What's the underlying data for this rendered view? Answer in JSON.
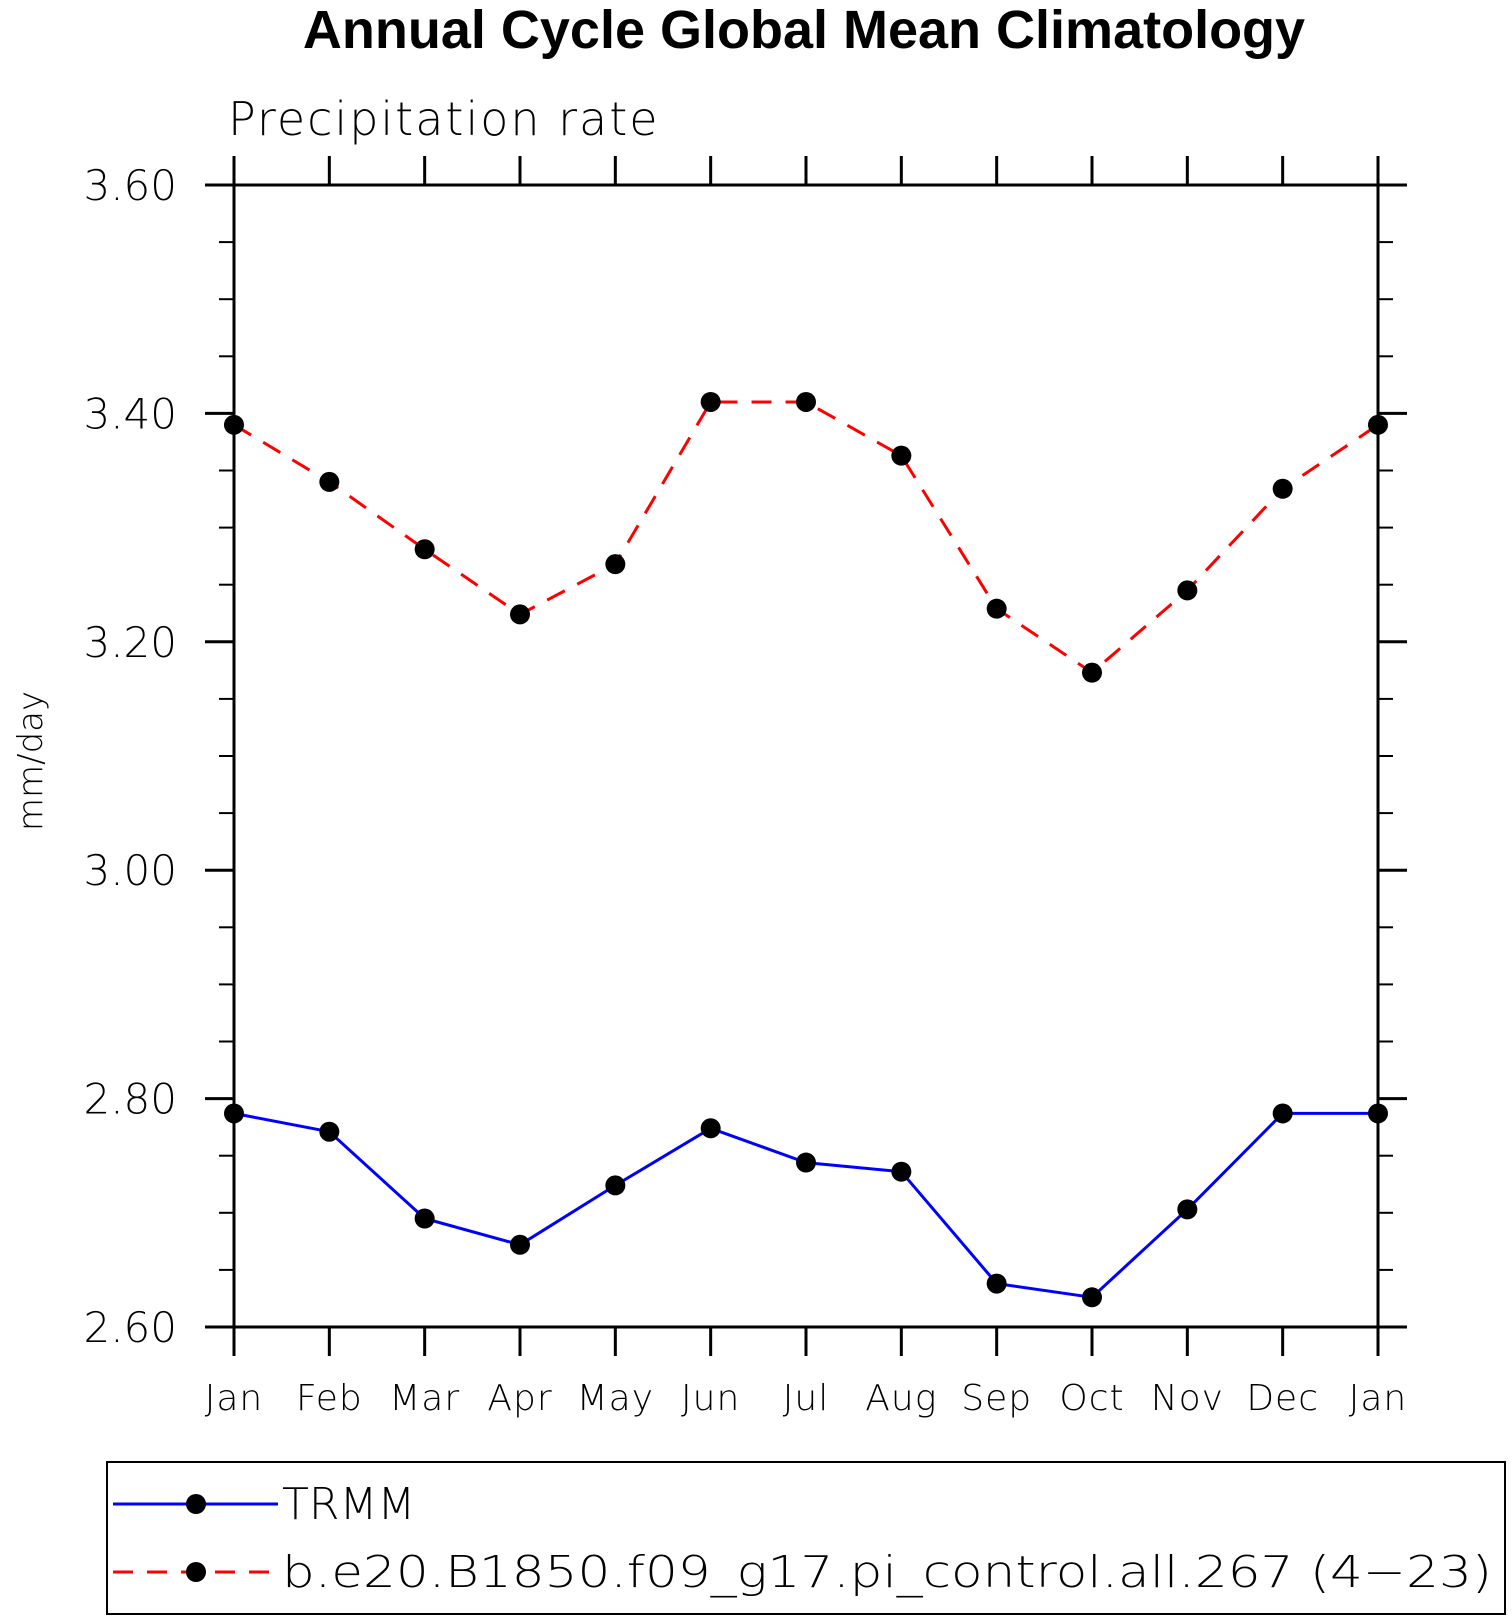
{
  "chart_data": {
    "type": "line",
    "title": "Annual Cycle Global Mean Climatology",
    "subtitle": "Precipitation rate",
    "xlabel": "",
    "ylabel": "mm/day",
    "categories": [
      "Jan",
      "Feb",
      "Mar",
      "Apr",
      "May",
      "Jun",
      "Jul",
      "Aug",
      "Sep",
      "Oct",
      "Nov",
      "Dec",
      "Jan"
    ],
    "ylim": [
      2.6,
      3.6
    ],
    "yticks": [
      "2.60",
      "2.80",
      "3.00",
      "3.20",
      "3.40",
      "3.60"
    ],
    "grid": false,
    "legend_position": "bottom",
    "series": [
      {
        "name": "TRMM",
        "color": "#0000ff",
        "line_style": "solid",
        "marker": "filled-circle",
        "values": [
          2.787,
          2.771,
          2.695,
          2.672,
          2.724,
          2.774,
          2.744,
          2.736,
          2.638,
          2.626,
          2.703,
          2.787,
          2.787
        ]
      },
      {
        "name": "b.e20.B1850.f09_g17.pi_control.all.267 (4−23)",
        "color": "#ff0000",
        "line_style": "dashed",
        "marker": "filled-circle",
        "values": [
          3.39,
          3.34,
          3.281,
          3.224,
          3.268,
          3.41,
          3.41,
          3.363,
          3.229,
          3.173,
          3.245,
          3.334,
          3.39
        ]
      }
    ]
  }
}
